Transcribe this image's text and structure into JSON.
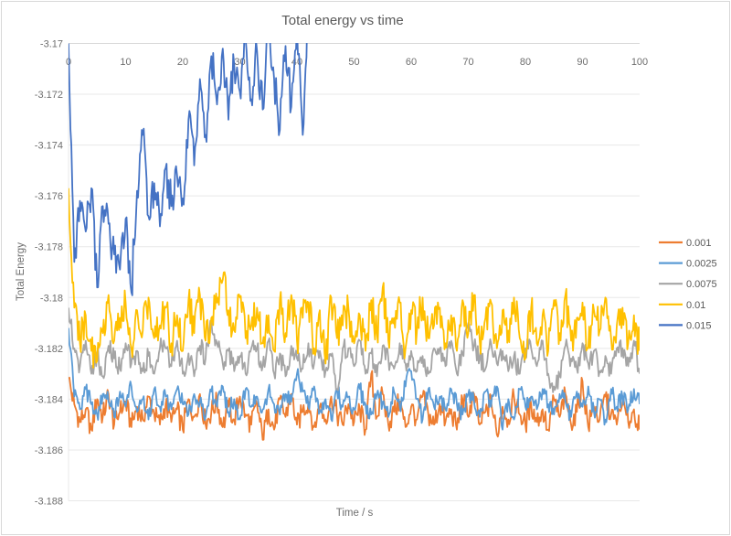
{
  "title": "Total energy vs time",
  "axes": {
    "x_title": "Time / s",
    "y_title": "Total Energy",
    "x_tick_labels": [
      "0",
      "10",
      "20",
      "30",
      "40",
      "50",
      "60",
      "70",
      "80",
      "90",
      "100"
    ],
    "y_tick_labels": [
      "-3.17",
      "-3.172",
      "-3.174",
      "-3.176",
      "-3.178",
      "-3.18",
      "-3.182",
      "-3.184",
      "-3.186",
      "-3.188"
    ]
  },
  "legend": {
    "position": "right"
  },
  "colors": {
    "grid": "#e8e8e8",
    "axis": "#d9d9d9",
    "border": "#d9d9d9",
    "title_text": "#595959",
    "tick_text": "#6e6e6e"
  },
  "chart_data": {
    "type": "line",
    "title": "Total energy vs time",
    "xlabel": "Time / s",
    "ylabel": "Total Energy",
    "xlim": [
      0,
      100
    ],
    "ylim": [
      -3.188,
      -3.17
    ],
    "x_ticks": [
      0,
      10,
      20,
      30,
      40,
      50,
      60,
      70,
      80,
      90,
      100
    ],
    "y_ticks": [
      -3.17,
      -3.172,
      -3.174,
      -3.176,
      -3.178,
      -3.18,
      -3.182,
      -3.184,
      -3.186,
      -3.188
    ],
    "grid": "horizontal",
    "legend_position": "right",
    "series": [
      {
        "name": "0.001",
        "color": "#ED7D31",
        "x_start": 0,
        "x_step": 1,
        "jitter": 0.00045,
        "values": [
          -3.1832,
          -3.1842,
          -3.1849,
          -3.1844,
          -3.1852,
          -3.184,
          -3.1847,
          -3.1838,
          -3.185,
          -3.1845,
          -3.1841,
          -3.1851,
          -3.1843,
          -3.1848,
          -3.1839,
          -3.1846,
          -3.185,
          -3.1842,
          -3.1849,
          -3.1844,
          -3.1852,
          -3.184,
          -3.1847,
          -3.1838,
          -3.185,
          -3.1845,
          -3.1841,
          -3.1851,
          -3.1843,
          -3.1848,
          -3.1839,
          -3.1846,
          -3.185,
          -3.1842,
          -3.1856,
          -3.1844,
          -3.1852,
          -3.184,
          -3.1847,
          -3.1838,
          -3.185,
          -3.1845,
          -3.1841,
          -3.1851,
          -3.1843,
          -3.1848,
          -3.1839,
          -3.1846,
          -3.185,
          -3.1842,
          -3.1849,
          -3.1844,
          -3.1852,
          -3.183,
          -3.1847,
          -3.1838,
          -3.185,
          -3.1845,
          -3.1841,
          -3.1851,
          -3.1843,
          -3.1848,
          -3.1839,
          -3.1846,
          -3.185,
          -3.1842,
          -3.1849,
          -3.1844,
          -3.1852,
          -3.184,
          -3.1847,
          -3.1838,
          -3.185,
          -3.1845,
          -3.1841,
          -3.1854,
          -3.1843,
          -3.1848,
          -3.1839,
          -3.1846,
          -3.185,
          -3.1842,
          -3.1849,
          -3.1844,
          -3.1852,
          -3.184,
          -3.1847,
          -3.1838,
          -3.185,
          -3.1845,
          -3.1833,
          -3.1851,
          -3.1843,
          -3.1848,
          -3.1839,
          -3.1846,
          -3.185,
          -3.1842,
          -3.1849,
          -3.1844,
          -3.1852
        ]
      },
      {
        "name": "0.0025",
        "color": "#5B9BD5",
        "x_start": 0,
        "x_step": 1,
        "jitter": 0.00035,
        "values": [
          -3.1812,
          -3.1839,
          -3.1844,
          -3.1836,
          -3.1842,
          -3.1846,
          -3.1838,
          -3.1841,
          -3.1847,
          -3.1837,
          -3.1843,
          -3.1835,
          -3.1845,
          -3.184,
          -3.1848,
          -3.1836,
          -3.1843,
          -3.1839,
          -3.1844,
          -3.1836,
          -3.1842,
          -3.1846,
          -3.1838,
          -3.1841,
          -3.1847,
          -3.1837,
          -3.1843,
          -3.1835,
          -3.1845,
          -3.184,
          -3.1848,
          -3.1836,
          -3.1843,
          -3.1839,
          -3.1844,
          -3.1836,
          -3.1842,
          -3.1846,
          -3.1838,
          -3.1841,
          -3.183,
          -3.1837,
          -3.1843,
          -3.1835,
          -3.1845,
          -3.184,
          -3.1848,
          -3.1836,
          -3.1843,
          -3.1839,
          -3.1844,
          -3.1836,
          -3.1842,
          -3.1846,
          -3.1838,
          -3.1841,
          -3.1847,
          -3.1837,
          -3.1843,
          -3.1835,
          -3.1829,
          -3.184,
          -3.1848,
          -3.1836,
          -3.1843,
          -3.1839,
          -3.1844,
          -3.1836,
          -3.1842,
          -3.1846,
          -3.1838,
          -3.1841,
          -3.1847,
          -3.1837,
          -3.1843,
          -3.1835,
          -3.1852,
          -3.184,
          -3.1848,
          -3.1836,
          -3.1843,
          -3.1839,
          -3.1844,
          -3.1836,
          -3.1842,
          -3.1846,
          -3.1838,
          -3.1841,
          -3.1847,
          -3.1837,
          -3.1843,
          -3.1835,
          -3.1845,
          -3.184,
          -3.1848,
          -3.1836,
          -3.1843,
          -3.1839,
          -3.1844,
          -3.1836,
          -3.1842
        ]
      },
      {
        "name": "0.0075",
        "color": "#A5A5A5",
        "x_start": 0,
        "x_step": 1,
        "jitter": 0.0004,
        "values": [
          -3.1804,
          -3.182,
          -3.1827,
          -3.1817,
          -3.183,
          -3.1822,
          -3.1831,
          -3.1819,
          -3.1824,
          -3.1828,
          -3.1818,
          -3.1826,
          -3.1821,
          -3.1829,
          -3.1823,
          -3.183,
          -3.182,
          -3.182,
          -3.1827,
          -3.1817,
          -3.183,
          -3.1822,
          -3.1831,
          -3.1819,
          -3.1824,
          -3.1809,
          -3.1818,
          -3.1826,
          -3.1821,
          -3.1829,
          -3.1823,
          -3.183,
          -3.182,
          -3.182,
          -3.1827,
          -3.1817,
          -3.183,
          -3.1822,
          -3.1831,
          -3.1819,
          -3.1824,
          -3.1828,
          -3.1818,
          -3.1826,
          -3.1821,
          -3.1829,
          -3.1823,
          -3.1836,
          -3.182,
          -3.182,
          -3.1827,
          -3.1817,
          -3.183,
          -3.1822,
          -3.1831,
          -3.1819,
          -3.1824,
          -3.1828,
          -3.1818,
          -3.1826,
          -3.1821,
          -3.1829,
          -3.1823,
          -3.183,
          -3.182,
          -3.182,
          -3.1827,
          -3.1817,
          -3.183,
          -3.1822,
          -3.181,
          -3.1819,
          -3.1824,
          -3.1828,
          -3.1818,
          -3.1826,
          -3.1821,
          -3.1829,
          -3.1823,
          -3.183,
          -3.182,
          -3.182,
          -3.1827,
          -3.1817,
          -3.183,
          -3.1835,
          -3.1831,
          -3.1819,
          -3.1824,
          -3.1828,
          -3.1818,
          -3.1826,
          -3.1821,
          -3.1829,
          -3.1823,
          -3.183,
          -3.182,
          -3.182,
          -3.1827,
          -3.1817,
          -3.183
        ]
      },
      {
        "name": "0.01",
        "color": "#FFC000",
        "x_start": 0,
        "x_step": 1,
        "jitter": 0.0007,
        "values": [
          -3.1757,
          -3.1804,
          -3.1818,
          -3.1807,
          -3.1821,
          -3.1825,
          -3.1814,
          -3.1799,
          -3.1817,
          -3.1808,
          -3.1802,
          -3.182,
          -3.1805,
          -3.1813,
          -3.18,
          -3.1816,
          -3.1811,
          -3.1804,
          -3.1818,
          -3.1807,
          -3.1821,
          -3.1801,
          -3.1814,
          -3.1799,
          -3.1817,
          -3.1808,
          -3.1802,
          -3.1793,
          -3.1805,
          -3.1813,
          -3.18,
          -3.1816,
          -3.1811,
          -3.1804,
          -3.1818,
          -3.1807,
          -3.1821,
          -3.1801,
          -3.1814,
          -3.1799,
          -3.1817,
          -3.1808,
          -3.1802,
          -3.182,
          -3.1805,
          -3.1826,
          -3.18,
          -3.1816,
          -3.1811,
          -3.1804,
          -3.1818,
          -3.1807,
          -3.1821,
          -3.1801,
          -3.1814,
          -3.1796,
          -3.1817,
          -3.1808,
          -3.1802,
          -3.182,
          -3.1805,
          -3.1813,
          -3.18,
          -3.1816,
          -3.1811,
          -3.1804,
          -3.1818,
          -3.1807,
          -3.1821,
          -3.1801,
          -3.1814,
          -3.1799,
          -3.1817,
          -3.1808,
          -3.1802,
          -3.182,
          -3.1805,
          -3.1813,
          -3.18,
          -3.1816,
          -3.1824,
          -3.1804,
          -3.1818,
          -3.1807,
          -3.1821,
          -3.1801,
          -3.1814,
          -3.1799,
          -3.1817,
          -3.1808,
          -3.1802,
          -3.182,
          -3.1805,
          -3.1813,
          -3.18,
          -3.1816,
          -3.1811,
          -3.1804,
          -3.1818,
          -3.1807,
          -3.1821
        ]
      },
      {
        "name": "0.015",
        "color": "#4472C4",
        "x_start": 0,
        "x_step": 1,
        "jitter": 0.0008,
        "values": [
          -3.17,
          -3.1786,
          -3.1762,
          -3.1774,
          -3.1757,
          -3.1796,
          -3.1764,
          -3.1771,
          -3.1783,
          -3.1789,
          -3.1769,
          -3.1798,
          -3.1758,
          -3.1736,
          -3.1768,
          -3.1755,
          -3.1772,
          -3.1749,
          -3.1764,
          -3.1752,
          -3.1761,
          -3.173,
          -3.1748,
          -3.1714,
          -3.1736,
          -3.1705,
          -3.1724,
          -3.1702,
          -3.173,
          -3.1708,
          -3.1719,
          -3.1698,
          -3.1722,
          -3.1703,
          -3.1726,
          -3.1695,
          -3.1714,
          -3.1734,
          -3.1701,
          -3.1725,
          -3.1692,
          -3.1736,
          -3.168
        ]
      }
    ]
  }
}
